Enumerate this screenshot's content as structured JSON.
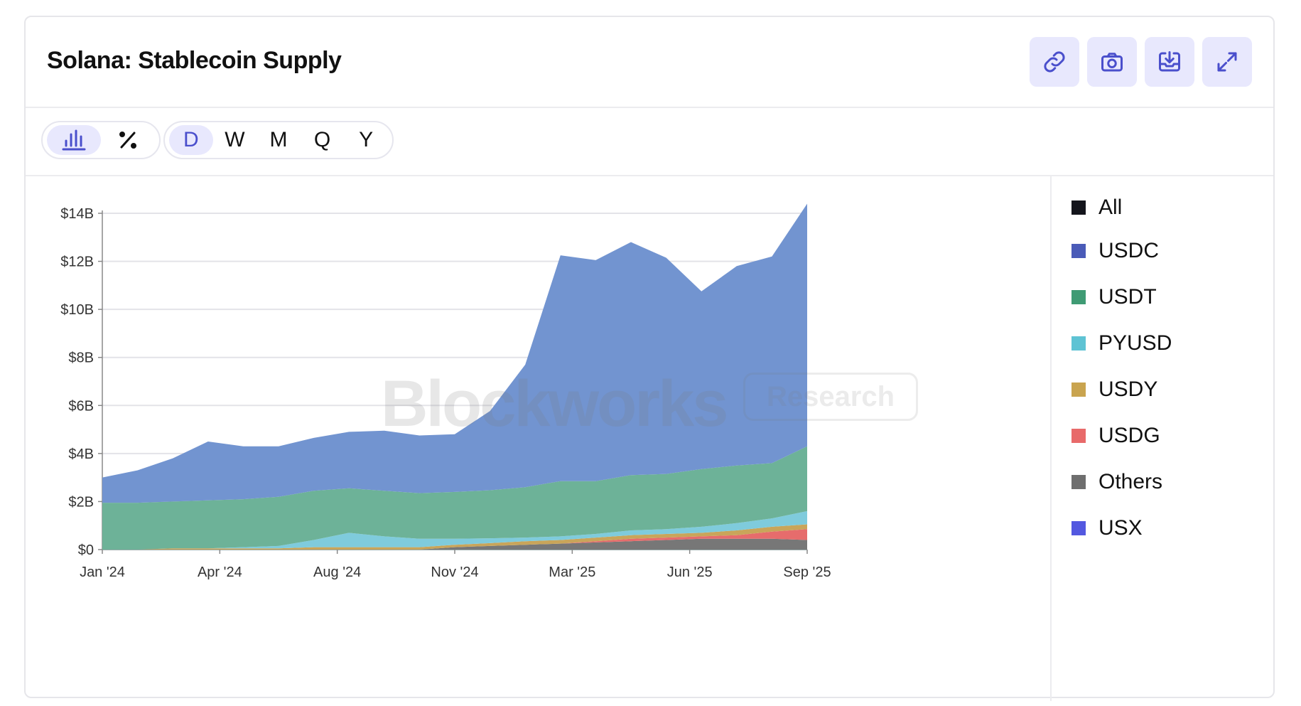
{
  "title": "Solana: Stablecoin Supply",
  "toolbar": {
    "link_icon": "link-icon",
    "camera_icon": "camera-icon",
    "download_icon": "download-icon",
    "expand_icon": "expand-icon",
    "accent": "#4a4fcc",
    "button_bg": "#e8e8fd"
  },
  "view_toggle": {
    "active": "bar-chart-icon",
    "other": "percent-icon"
  },
  "periods": [
    "D",
    "W",
    "M",
    "Q",
    "Y"
  ],
  "active_period": "D",
  "watermark": {
    "brand": "Blockworks",
    "tag": "Research"
  },
  "chart_data": {
    "type": "area",
    "stacked": true,
    "x_ticks": [
      "Jan '24",
      "Apr '24",
      "Aug '24",
      "Nov '24",
      "Mar '25",
      "Jun '25",
      "Sep '25"
    ],
    "y_ticks": [
      "$0",
      "$2B",
      "$4B",
      "$6B",
      "$8B",
      "$10B",
      "$12B",
      "$14B"
    ],
    "ylim": [
      0,
      14
    ],
    "y_unit": "$B",
    "grid": true,
    "legend_position": "right",
    "x": [
      "2024-01",
      "2024-02",
      "2024-03",
      "2024-04",
      "2024-05",
      "2024-06",
      "2024-07",
      "2024-08",
      "2024-09",
      "2024-10",
      "2024-11",
      "2024-12",
      "2025-01",
      "2025-02",
      "2025-03",
      "2025-04",
      "2025-05",
      "2025-06",
      "2025-07",
      "2025-08",
      "2025-09"
    ],
    "series": [
      {
        "name": "Others",
        "color": "#777777",
        "values": [
          0,
          0,
          0,
          0,
          0,
          0,
          0,
          0,
          0,
          0,
          0.1,
          0.15,
          0.2,
          0.25,
          0.3,
          0.35,
          0.4,
          0.45,
          0.45,
          0.45,
          0.4
        ]
      },
      {
        "name": "USDG",
        "color": "#e66c6c",
        "values": [
          0,
          0,
          0,
          0,
          0,
          0,
          0,
          0,
          0,
          0,
          0,
          0,
          0,
          0,
          0.05,
          0.1,
          0.1,
          0.1,
          0.15,
          0.3,
          0.45
        ]
      },
      {
        "name": "USDY",
        "color": "#c9a55a",
        "values": [
          0,
          0,
          0.05,
          0.05,
          0.05,
          0.05,
          0.1,
          0.1,
          0.1,
          0.1,
          0.1,
          0.12,
          0.15,
          0.15,
          0.15,
          0.15,
          0.15,
          0.15,
          0.2,
          0.2,
          0.2
        ]
      },
      {
        "name": "PYUSD",
        "color": "#7fcbdc",
        "values": [
          0,
          0,
          0,
          0,
          0.05,
          0.1,
          0.3,
          0.6,
          0.45,
          0.35,
          0.25,
          0.2,
          0.15,
          0.15,
          0.15,
          0.2,
          0.2,
          0.25,
          0.3,
          0.35,
          0.55
        ]
      },
      {
        "name": "USDT",
        "color": "#6db298",
        "values": [
          1.95,
          1.95,
          1.95,
          2.0,
          2.0,
          2.05,
          2.05,
          1.85,
          1.9,
          1.9,
          1.95,
          2.0,
          2.1,
          2.3,
          2.2,
          2.3,
          2.3,
          2.4,
          2.4,
          2.3,
          2.7
        ]
      },
      {
        "name": "USDC",
        "color": "#7294d0",
        "values": [
          1.05,
          1.35,
          1.8,
          2.45,
          2.2,
          2.1,
          2.2,
          2.35,
          2.5,
          2.4,
          2.4,
          3.3,
          5.1,
          9.4,
          9.2,
          9.7,
          9.0,
          7.4,
          8.3,
          8.6,
          10.1
        ]
      },
      {
        "name": "USX",
        "color": "#5358e0",
        "values": [
          0,
          0,
          0,
          0,
          0,
          0,
          0,
          0,
          0,
          0,
          0,
          0,
          0,
          0,
          0,
          0,
          0,
          0,
          0,
          0,
          0
        ]
      }
    ],
    "legend": [
      {
        "name": "All",
        "color": "#14151c"
      },
      {
        "name": "USDC",
        "color": "#4a5bb8"
      },
      {
        "name": "USDT",
        "color": "#3f9b74"
      },
      {
        "name": "PYUSD",
        "color": "#5ec3d4"
      },
      {
        "name": "USDY",
        "color": "#c9a44f"
      },
      {
        "name": "USDG",
        "color": "#e86a6a"
      },
      {
        "name": "Others",
        "color": "#6e6e6e"
      },
      {
        "name": "USX",
        "color": "#5358e0"
      }
    ]
  }
}
